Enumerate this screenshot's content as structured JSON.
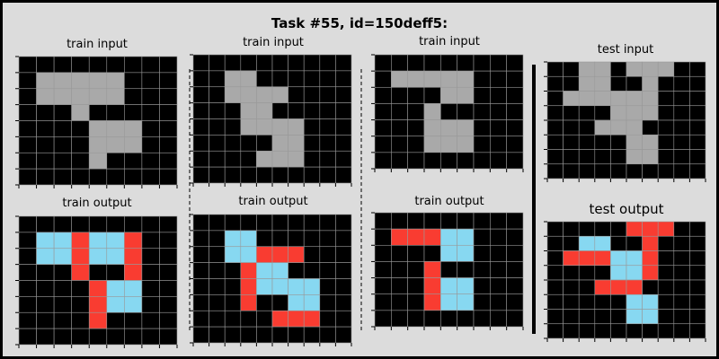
{
  "title": "Task #55, id=150deff5:",
  "colors": {
    "black": "#000000",
    "gray": "#a9a9a9",
    "blue": "#87d8f1",
    "red": "#f93c31",
    "grid": "#999999"
  },
  "panels": [
    {
      "label": "train input",
      "grid": [
        [
          0,
          0,
          0,
          0,
          0,
          0,
          0,
          0,
          0
        ],
        [
          0,
          5,
          5,
          5,
          5,
          5,
          0,
          0,
          0
        ],
        [
          0,
          5,
          5,
          5,
          5,
          5,
          0,
          0,
          0
        ],
        [
          0,
          0,
          0,
          5,
          0,
          0,
          0,
          0,
          0
        ],
        [
          0,
          0,
          0,
          0,
          5,
          5,
          5,
          0,
          0
        ],
        [
          0,
          0,
          0,
          0,
          5,
          5,
          5,
          0,
          0
        ],
        [
          0,
          0,
          0,
          0,
          5,
          0,
          0,
          0,
          0
        ],
        [
          0,
          0,
          0,
          0,
          0,
          0,
          0,
          0,
          0
        ]
      ]
    },
    {
      "label": "train input",
      "grid": [
        [
          0,
          0,
          0,
          0,
          0,
          0,
          0,
          0,
          0,
          0
        ],
        [
          0,
          0,
          5,
          5,
          0,
          0,
          0,
          0,
          0,
          0
        ],
        [
          0,
          0,
          5,
          5,
          5,
          5,
          0,
          0,
          0,
          0
        ],
        [
          0,
          0,
          0,
          5,
          5,
          0,
          0,
          0,
          0,
          0
        ],
        [
          0,
          0,
          0,
          5,
          5,
          5,
          5,
          0,
          0,
          0
        ],
        [
          0,
          0,
          0,
          0,
          0,
          5,
          5,
          0,
          0,
          0
        ],
        [
          0,
          0,
          0,
          0,
          5,
          5,
          5,
          0,
          0,
          0
        ],
        [
          0,
          0,
          0,
          0,
          0,
          0,
          0,
          0,
          0,
          0
        ]
      ]
    },
    {
      "label": "train input",
      "grid": [
        [
          0,
          0,
          0,
          0,
          0,
          0,
          0,
          0,
          0
        ],
        [
          0,
          5,
          5,
          5,
          5,
          5,
          0,
          0,
          0
        ],
        [
          0,
          0,
          0,
          0,
          5,
          5,
          0,
          0,
          0
        ],
        [
          0,
          0,
          0,
          5,
          0,
          0,
          0,
          0,
          0
        ],
        [
          0,
          0,
          0,
          5,
          5,
          5,
          0,
          0,
          0
        ],
        [
          0,
          0,
          0,
          5,
          5,
          5,
          0,
          0,
          0
        ],
        [
          0,
          0,
          0,
          0,
          0,
          0,
          0,
          0,
          0
        ]
      ]
    },
    {
      "label": "test input",
      "grid": [
        [
          0,
          0,
          5,
          5,
          0,
          5,
          5,
          5,
          0,
          0
        ],
        [
          0,
          0,
          5,
          5,
          0,
          0,
          5,
          0,
          0,
          0
        ],
        [
          0,
          5,
          5,
          5,
          5,
          5,
          5,
          0,
          0,
          0
        ],
        [
          0,
          0,
          0,
          0,
          5,
          5,
          5,
          0,
          0,
          0
        ],
        [
          0,
          0,
          0,
          5,
          5,
          5,
          0,
          0,
          0,
          0
        ],
        [
          0,
          0,
          0,
          0,
          0,
          5,
          5,
          0,
          0,
          0
        ],
        [
          0,
          0,
          0,
          0,
          0,
          5,
          5,
          0,
          0,
          0
        ],
        [
          0,
          0,
          0,
          0,
          0,
          0,
          0,
          0,
          0,
          0
        ]
      ]
    },
    {
      "label": "train output",
      "grid": [
        [
          0,
          0,
          0,
          0,
          0,
          0,
          0,
          0,
          0
        ],
        [
          0,
          8,
          8,
          2,
          8,
          8,
          2,
          0,
          0
        ],
        [
          0,
          8,
          8,
          2,
          8,
          8,
          2,
          0,
          0
        ],
        [
          0,
          0,
          0,
          2,
          0,
          0,
          2,
          0,
          0
        ],
        [
          0,
          0,
          0,
          0,
          2,
          8,
          8,
          0,
          0
        ],
        [
          0,
          0,
          0,
          0,
          2,
          8,
          8,
          0,
          0
        ],
        [
          0,
          0,
          0,
          0,
          2,
          0,
          0,
          0,
          0
        ],
        [
          0,
          0,
          0,
          0,
          0,
          0,
          0,
          0,
          0
        ]
      ]
    },
    {
      "label": "train output",
      "grid": [
        [
          0,
          0,
          0,
          0,
          0,
          0,
          0,
          0,
          0,
          0
        ],
        [
          0,
          0,
          8,
          8,
          0,
          0,
          0,
          0,
          0,
          0
        ],
        [
          0,
          0,
          8,
          8,
          2,
          2,
          2,
          0,
          0,
          0
        ],
        [
          0,
          0,
          0,
          2,
          8,
          8,
          0,
          0,
          0,
          0
        ],
        [
          0,
          0,
          0,
          2,
          8,
          8,
          8,
          8,
          0,
          0
        ],
        [
          0,
          0,
          0,
          2,
          0,
          0,
          8,
          8,
          0,
          0
        ],
        [
          0,
          0,
          0,
          0,
          0,
          2,
          2,
          2,
          0,
          0
        ],
        [
          0,
          0,
          0,
          0,
          0,
          0,
          0,
          0,
          0,
          0
        ]
      ]
    },
    {
      "label": "train output",
      "grid": [
        [
          0,
          0,
          0,
          0,
          0,
          0,
          0,
          0,
          0
        ],
        [
          0,
          2,
          2,
          2,
          8,
          8,
          0,
          0,
          0
        ],
        [
          0,
          0,
          0,
          0,
          8,
          8,
          0,
          0,
          0
        ],
        [
          0,
          0,
          0,
          2,
          0,
          0,
          0,
          0,
          0
        ],
        [
          0,
          0,
          0,
          2,
          8,
          8,
          0,
          0,
          0
        ],
        [
          0,
          0,
          0,
          2,
          8,
          8,
          0,
          0,
          0
        ],
        [
          0,
          0,
          0,
          0,
          0,
          0,
          0,
          0,
          0
        ]
      ]
    },
    {
      "label": "test output",
      "grid": [
        [
          0,
          0,
          0,
          0,
          0,
          2,
          2,
          2,
          0,
          0
        ],
        [
          0,
          0,
          8,
          8,
          0,
          0,
          2,
          0,
          0,
          0
        ],
        [
          0,
          2,
          2,
          2,
          8,
          8,
          2,
          0,
          0,
          0
        ],
        [
          0,
          0,
          0,
          0,
          8,
          8,
          2,
          0,
          0,
          0
        ],
        [
          0,
          0,
          0,
          2,
          2,
          2,
          0,
          0,
          0,
          0
        ],
        [
          0,
          0,
          0,
          0,
          0,
          8,
          8,
          0,
          0,
          0
        ],
        [
          0,
          0,
          0,
          0,
          0,
          8,
          8,
          0,
          0,
          0
        ],
        [
          0,
          0,
          0,
          0,
          0,
          0,
          0,
          0,
          0,
          0
        ]
      ]
    }
  ]
}
